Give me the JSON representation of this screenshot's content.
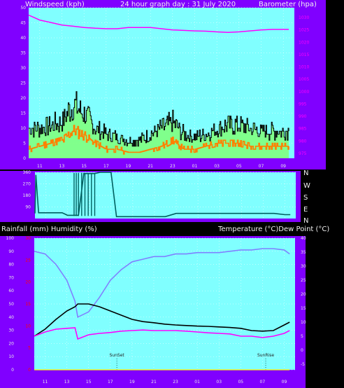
{
  "header": {
    "left": "Windspeed (kph)",
    "center": "24 hour graph day : 31 July 2020",
    "right": "Barometer (hpa)"
  },
  "middle_header": {
    "left": "Rainfall (mm)  Humidity (%)",
    "right": "Temperature (°C)Dew Point (°C)"
  },
  "x_ticks": [
    "11",
    "13",
    "15",
    "17",
    "19",
    "21",
    "23",
    "01",
    "03",
    "05",
    "07",
    "09"
  ],
  "compass_labels": [
    "N",
    "W",
    "S",
    "E",
    "N"
  ],
  "markers": {
    "sunset": "SunSet",
    "sunrise": "SunRise"
  },
  "colors": {
    "frame": "#8000ff",
    "plot_bg": "#80ffff",
    "gust": "#000000",
    "wind_avg": "#ff8000",
    "wind_fill": "#80ff80",
    "pressure": "#ff00ff",
    "direction": "#006060",
    "temperature": "#000000",
    "dewpoint": "#ff00ff",
    "humidity": "#8080ff",
    "rain_axis": "#ff0000"
  },
  "chart_data": [
    {
      "type": "line",
      "name": "wind-and-pressure",
      "x": [
        "10:00",
        "11:00",
        "12:00",
        "13:00",
        "14:00",
        "15:00",
        "16:00",
        "17:00",
        "18:00",
        "19:00",
        "20:00",
        "21:00",
        "22:00",
        "23:00",
        "00:00",
        "01:00",
        "02:00",
        "03:00",
        "04:00",
        "05:00",
        "06:00",
        "07:00",
        "08:00",
        "09:00",
        "09:30"
      ],
      "series": [
        {
          "values": [
            10,
            10,
            11,
            12,
            18,
            15,
            10,
            8,
            7,
            6,
            6,
            8,
            10,
            12,
            8,
            7,
            8,
            10,
            11,
            11,
            10,
            9,
            9,
            9,
            9
          ]
        },
        {
          "values": [
            3,
            4,
            5,
            6,
            9,
            8,
            5,
            3,
            3,
            2,
            2,
            3,
            4,
            6,
            3,
            3,
            4,
            5,
            5,
            5,
            4,
            4,
            4,
            4,
            4
          ]
        },
        {
          "values": [
            1031,
            1029,
            1028,
            1027,
            1026.5,
            1026,
            1025.7,
            1025.5,
            1025.5,
            1026,
            1026,
            1026,
            1025.5,
            1025,
            1024.8,
            1024.6,
            1024.5,
            1024.2,
            1024,
            1024.2,
            1024.6,
            1025,
            1025.2,
            1025.2,
            1025.2
          ]
        }
      ],
      "y_left": {
        "ticks": [
          0,
          5,
          10,
          15,
          20,
          25,
          30,
          35,
          40,
          45,
          50
        ],
        "range": [
          0,
          50
        ]
      },
      "y_right": {
        "ticks": [
          975,
          980,
          985,
          990,
          995,
          1000,
          1005,
          1010,
          1015,
          1020,
          1025,
          1030
        ],
        "range": [
          973,
          1034
        ]
      }
    },
    {
      "type": "line",
      "name": "wind-direction",
      "y_ticks": [
        90,
        180,
        270,
        360
      ],
      "x": [
        "10:00",
        "10:05",
        "10:20",
        "11:00",
        "11:30",
        "12:00",
        "12:30",
        "13:00",
        "13:30",
        "14:00",
        "14:30",
        "15:00",
        "15:30",
        "16:00",
        "16:30",
        "17:00",
        "17:30",
        "18:00",
        "19:00",
        "20:00",
        "21:00",
        "22:00",
        "23:00",
        "00:00",
        "01:00",
        "02:00",
        "03:00",
        "04:00",
        "05:00",
        "06:00",
        "07:00",
        "08:00",
        "09:00",
        "09:30"
      ],
      "values": [
        40,
        340,
        45,
        45,
        45,
        45,
        45,
        25,
        25,
        25,
        350,
        350,
        350,
        360,
        360,
        360,
        15,
        15,
        15,
        15,
        15,
        15,
        40,
        40,
        40,
        40,
        40,
        40,
        40,
        40,
        40,
        40,
        30,
        30
      ]
    },
    {
      "type": "line",
      "name": "temperature-humidity-rain",
      "x": [
        "10:00",
        "11:00",
        "12:00",
        "13:00",
        "13:45",
        "14:00",
        "15:00",
        "16:00",
        "17:00",
        "18:00",
        "19:00",
        "20:00",
        "21:00",
        "22:00",
        "23:00",
        "00:00",
        "01:00",
        "02:00",
        "03:00",
        "04:00",
        "05:00",
        "06:00",
        "07:00",
        "08:00",
        "09:00",
        "09:30"
      ],
      "series": [
        {
          "values": [
            5,
            7.5,
            11,
            14,
            15.5,
            16.5,
            16.5,
            15.5,
            14,
            12.5,
            11,
            10.2,
            9.8,
            9.3,
            9,
            8.8,
            8.6,
            8.5,
            8.3,
            8.1,
            7.8,
            7,
            6.8,
            7,
            9,
            10
          ]
        },
        {
          "values": [
            5,
            6.5,
            7.5,
            7.8,
            8,
            4,
            5.5,
            6,
            6.3,
            6.8,
            7,
            7.2,
            7,
            7,
            7,
            6.8,
            6.5,
            6.2,
            6,
            5.8,
            5,
            5,
            4.5,
            5,
            6,
            7
          ]
        },
        {
          "values": [
            90,
            88,
            80,
            68,
            52,
            40,
            44,
            55,
            68,
            76,
            82,
            84,
            86,
            86,
            88,
            88,
            89,
            89,
            89,
            90,
            91,
            91,
            92,
            92,
            91,
            88
          ]
        },
        {
          "values": [
            0,
            0,
            0,
            0,
            0,
            0,
            0,
            0,
            0,
            0,
            0,
            0,
            0,
            0,
            0,
            0,
            0,
            0,
            0,
            0,
            0,
            0,
            0,
            0,
            0,
            0
          ]
        }
      ],
      "y_left": {
        "ticks": [
          0,
          10,
          20,
          30,
          40,
          50,
          60,
          70,
          80,
          90,
          100
        ],
        "range": [
          0,
          100
        ]
      },
      "y_rain": {
        "ticks": [
          0,
          5,
          10,
          15,
          20,
          25,
          30
        ],
        "range": [
          0,
          30
        ]
      },
      "y_right": {
        "ticks": [
          -5,
          0,
          5,
          10,
          15,
          20,
          25,
          30,
          35,
          40
        ],
        "range": [
          -7,
          40
        ]
      }
    }
  ]
}
